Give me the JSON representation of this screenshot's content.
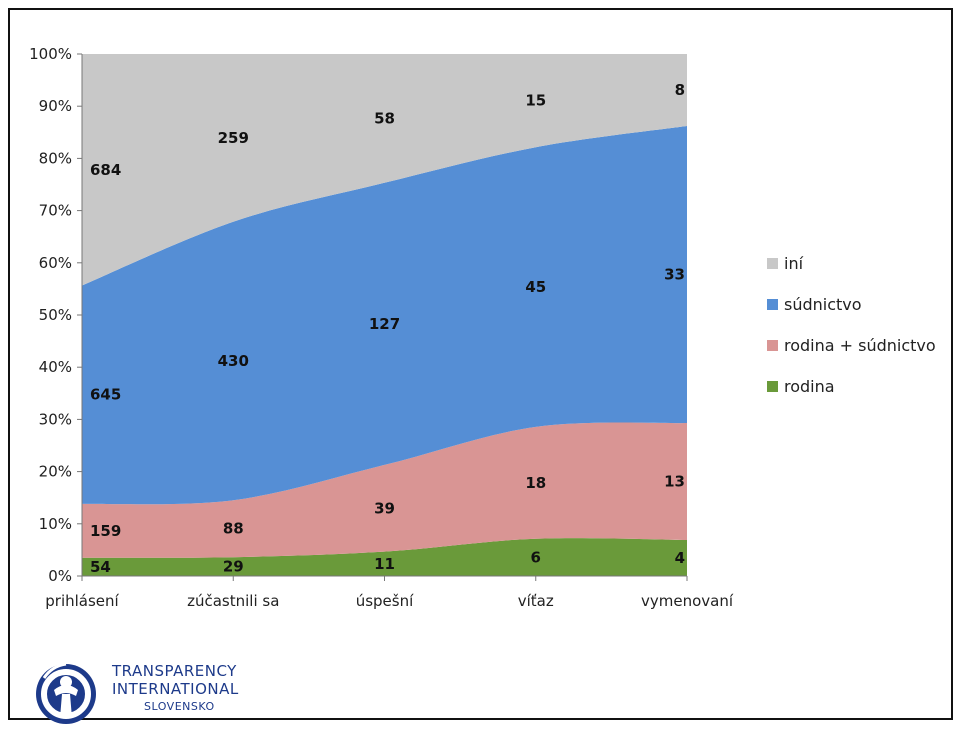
{
  "chart_data": {
    "type": "area",
    "stacked": "percent",
    "categories": [
      "prihlásení",
      "zúčastnili sa",
      "úspešní",
      "víťaz",
      "vymenovaní"
    ],
    "series": [
      {
        "name": "rodina",
        "values": [
          54,
          29,
          11,
          6,
          4
        ],
        "color": "#6a9a3a"
      },
      {
        "name": "rodina + súdnictvo",
        "values": [
          159,
          88,
          39,
          18,
          13
        ],
        "color": "#d99594"
      },
      {
        "name": "súdnictvo",
        "values": [
          645,
          430,
          127,
          45,
          33
        ],
        "color": "#558ed5"
      },
      {
        "name": "iní",
        "values": [
          684,
          259,
          58,
          15,
          8
        ],
        "color": "#c8c8c8"
      }
    ],
    "yticks": [
      "0%",
      "10%",
      "20%",
      "30%",
      "40%",
      "50%",
      "60%",
      "70%",
      "80%",
      "90%",
      "100%"
    ],
    "ylim": [
      0,
      100
    ],
    "legend_position": "right",
    "grid": false
  },
  "logo": {
    "line1": "TRANSPARENCY",
    "line2": "INTERNATIONAL",
    "line3": "SLOVENSKO",
    "icon": "transparency-international-globe-icon",
    "color": "#1d3a8a"
  }
}
